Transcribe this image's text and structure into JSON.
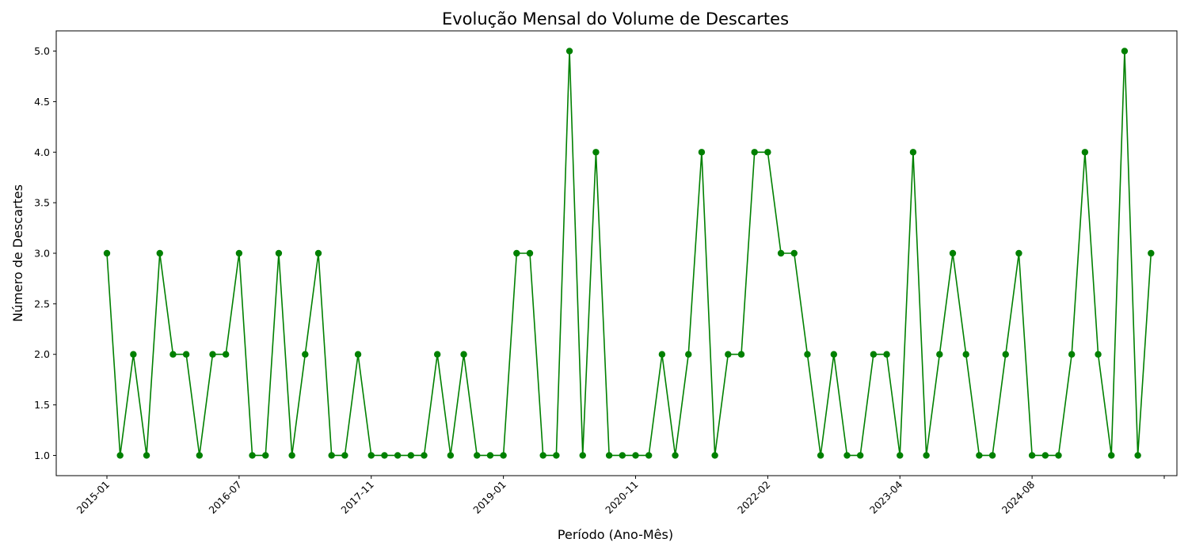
{
  "chart_data": {
    "type": "line",
    "title": "Evolução Mensal do Volume de Descartes",
    "xlabel": "Período (Ano-Mês)",
    "ylabel": "Número de Descartes",
    "ylim": [
      0.8,
      5.2
    ],
    "yticks": [
      1.0,
      1.5,
      2.0,
      2.5,
      3.0,
      3.5,
      4.0,
      4.5,
      5.0
    ],
    "ytick_labels": [
      "1.0",
      "1.5",
      "2.0",
      "2.5",
      "3.0",
      "3.5",
      "4.0",
      "4.5",
      "5.0"
    ],
    "xticks": [
      {
        "index": 0,
        "label": "2015-01"
      },
      {
        "index": 10,
        "label": "2016-07"
      },
      {
        "index": 20,
        "label": "2017-11"
      },
      {
        "index": 30,
        "label": "2019-01"
      },
      {
        "index": 40,
        "label": "2020-11"
      },
      {
        "index": 50,
        "label": "2022-02"
      },
      {
        "index": 60,
        "label": "2023-04"
      },
      {
        "index": 70,
        "label": "2024-08"
      },
      {
        "index": 80,
        "label": ""
      }
    ],
    "grid": false,
    "line_color": "#008000",
    "marker": "circle",
    "series": [
      {
        "values": [
          3,
          1,
          2,
          1,
          3,
          2,
          2,
          1,
          2,
          2,
          3,
          1,
          1,
          3,
          1,
          2,
          3,
          1,
          1,
          2,
          1,
          1,
          1,
          1,
          1,
          2,
          1,
          2,
          1,
          1,
          1,
          3,
          3,
          1,
          1,
          5,
          1,
          4,
          1,
          1,
          1,
          1,
          2,
          1,
          2,
          4,
          1,
          2,
          2,
          4,
          4,
          3,
          3,
          2,
          1,
          2,
          1,
          1,
          2,
          2,
          1,
          4,
          1,
          2,
          3,
          2,
          1,
          1,
          2,
          3,
          1,
          1,
          1,
          2,
          4,
          2,
          1,
          5,
          1,
          3
        ]
      }
    ]
  }
}
